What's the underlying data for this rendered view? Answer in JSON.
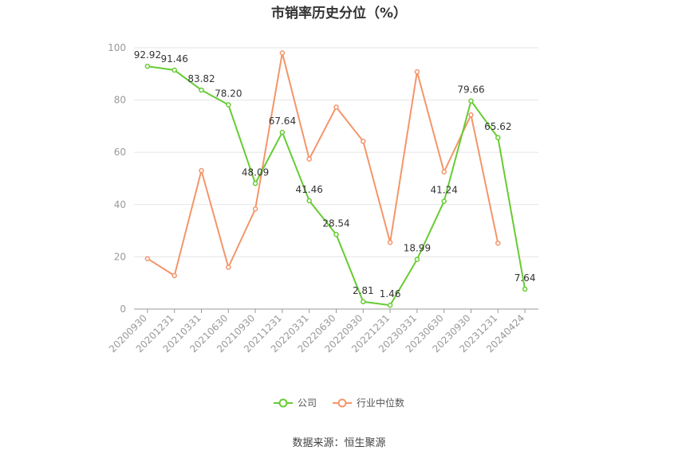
{
  "title": "市销率历史分位（%）",
  "source": "数据来源：恒生聚源",
  "chart_data": {
    "type": "line",
    "title": "市销率历史分位（%）",
    "categories": [
      "20200930",
      "20201231",
      "20210331",
      "20210630",
      "20210930",
      "20211231",
      "20220331",
      "20220630",
      "20220930",
      "20221231",
      "20230331",
      "20230630",
      "20230930",
      "20231231",
      "20240424"
    ],
    "ylim": [
      0,
      100
    ],
    "yticks": [
      0,
      20,
      40,
      60,
      80,
      100
    ],
    "grid": true,
    "legend_position": "bottom",
    "series": [
      {
        "name": "公司",
        "color": "#66cc33",
        "values": [
          92.92,
          91.46,
          83.82,
          78.2,
          48.09,
          67.64,
          41.46,
          28.54,
          2.81,
          1.46,
          18.99,
          41.24,
          79.66,
          65.62,
          7.64
        ],
        "labels": [
          "92.92",
          "91.46",
          "83.82",
          "78.20",
          "48.09",
          "67.64",
          "41.46",
          "28.54",
          "2.81",
          "1.46",
          "18.99",
          "41.24",
          "79.66",
          "65.62",
          "7.64"
        ]
      },
      {
        "name": "行业中位数",
        "color": "#f4956a",
        "values": [
          19.3,
          12.8,
          53.0,
          16.0,
          38.3,
          98.0,
          57.4,
          77.3,
          64.2,
          25.5,
          90.8,
          52.5,
          74.3,
          25.2,
          null
        ]
      }
    ]
  }
}
